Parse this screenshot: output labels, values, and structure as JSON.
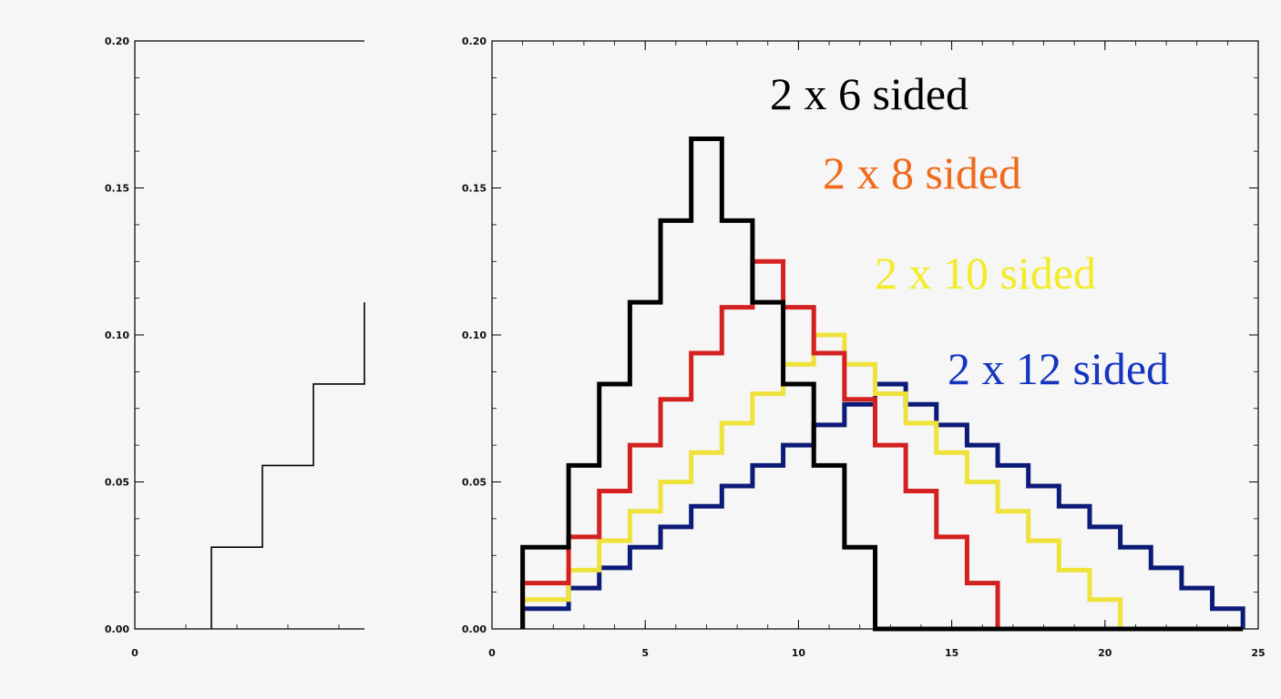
{
  "colors": {
    "background": "#f5f6f5",
    "axis": "#000000",
    "d6": "#000000",
    "d8": "#d42020",
    "d10": "#efe23a",
    "d12": "#0c1a78",
    "label_d8": "#f06a1c",
    "label_d10": "#f2ec26",
    "label_d12": "#1535c0"
  },
  "chart_data": [
    {
      "type": "line",
      "step": true,
      "title": "",
      "xlabel": "",
      "ylabel": "",
      "xlim": [
        0,
        4.5
      ],
      "ylim": [
        0,
        0.2
      ],
      "x_ticks": [
        {
          "value": 0,
          "label": "0"
        }
      ],
      "y_ticks": [
        {
          "value": 0,
          "label": "0.00"
        },
        {
          "value": 0.05,
          "label": "0.05"
        },
        {
          "value": 0.1,
          "label": "0.10"
        },
        {
          "value": 0.15,
          "label": "0.15"
        },
        {
          "value": 0.2,
          "label": "0.20"
        }
      ],
      "series": [
        {
          "color_key": "d6",
          "x": [
            1.5,
            2.5,
            3.5,
            4.5
          ],
          "values": [
            0.0278,
            0.0556,
            0.0833,
            0.1111
          ]
        }
      ]
    },
    {
      "type": "line",
      "step": true,
      "title": "",
      "xlabel": "",
      "ylabel": "",
      "xlim": [
        0,
        25
      ],
      "ylim": [
        0,
        0.2
      ],
      "x_ticks": [
        {
          "value": 0,
          "label": "0"
        },
        {
          "value": 5,
          "label": "5"
        },
        {
          "value": 10,
          "label": "10"
        },
        {
          "value": 15,
          "label": "15"
        },
        {
          "value": 20,
          "label": "20"
        },
        {
          "value": 25,
          "label": "25"
        }
      ],
      "y_ticks": [
        {
          "value": 0,
          "label": "0.00"
        },
        {
          "value": 0.05,
          "label": "0.05"
        },
        {
          "value": 0.1,
          "label": "0.10"
        },
        {
          "value": 0.15,
          "label": "0.15"
        },
        {
          "value": 0.2,
          "label": "0.20"
        }
      ],
      "series": [
        {
          "name": "2 x 6 sided",
          "color_key": "d6",
          "label_color_key": "d6",
          "x": [
            1.5,
            2.5,
            3.5,
            4.5,
            5.5,
            6.5,
            7.5,
            8.5,
            9.5,
            10.5,
            11.5,
            12.5,
            24.5
          ],
          "values": [
            0.0278,
            0.0556,
            0.0833,
            0.1111,
            0.1389,
            0.1667,
            0.1389,
            0.1111,
            0.0833,
            0.0556,
            0.0278,
            0.0,
            0.0
          ]
        },
        {
          "name": "2 x 8 sided",
          "color_key": "d8",
          "label_color_key": "label_d8",
          "x": [
            1.5,
            2.5,
            3.5,
            4.5,
            5.5,
            6.5,
            7.5,
            8.5,
            9.5,
            10.5,
            11.5,
            12.5,
            13.5,
            14.5,
            15.5,
            16.5,
            24.5
          ],
          "values": [
            0.0156,
            0.0313,
            0.0469,
            0.0625,
            0.0781,
            0.0938,
            0.1094,
            0.125,
            0.1094,
            0.0938,
            0.0781,
            0.0625,
            0.0469,
            0.0313,
            0.0156,
            0.0,
            0.0
          ]
        },
        {
          "name": "2 x 10 sided",
          "color_key": "d10",
          "label_color_key": "label_d10",
          "x": [
            1.5,
            2.5,
            3.5,
            4.5,
            5.5,
            6.5,
            7.5,
            8.5,
            9.5,
            10.5,
            11.5,
            12.5,
            13.5,
            14.5,
            15.5,
            16.5,
            17.5,
            18.5,
            19.5,
            20.5,
            24.5
          ],
          "values": [
            0.01,
            0.02,
            0.03,
            0.04,
            0.05,
            0.06,
            0.07,
            0.08,
            0.09,
            0.1,
            0.09,
            0.08,
            0.07,
            0.06,
            0.05,
            0.04,
            0.03,
            0.02,
            0.01,
            0.0,
            0.0
          ]
        },
        {
          "name": "2 x 12 sided",
          "color_key": "d12",
          "label_color_key": "label_d12",
          "x": [
            1.5,
            2.5,
            3.5,
            4.5,
            5.5,
            6.5,
            7.5,
            8.5,
            9.5,
            10.5,
            11.5,
            12.5,
            13.5,
            14.5,
            15.5,
            16.5,
            17.5,
            18.5,
            19.5,
            20.5,
            21.5,
            22.5,
            23.5,
            24.5
          ],
          "values": [
            0.0069,
            0.0139,
            0.0208,
            0.0278,
            0.0347,
            0.0417,
            0.0486,
            0.0556,
            0.0625,
            0.0694,
            0.0764,
            0.0833,
            0.0764,
            0.0694,
            0.0625,
            0.0556,
            0.0486,
            0.0417,
            0.0347,
            0.0278,
            0.0208,
            0.0139,
            0.0069,
            0.0
          ]
        }
      ]
    }
  ]
}
